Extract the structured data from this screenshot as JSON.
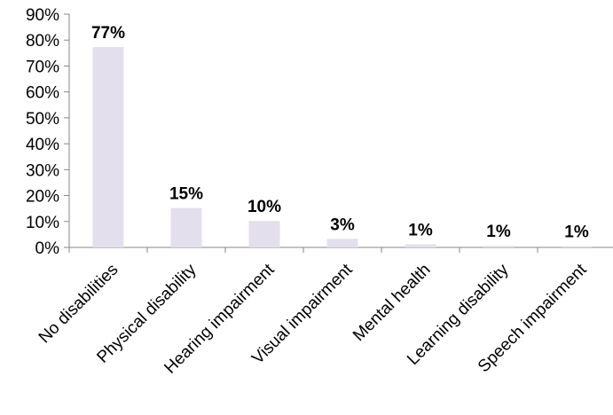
{
  "chart_data": {
    "type": "bar",
    "title": "",
    "xlabel": "",
    "ylabel": "",
    "categories": [
      "No disabilities",
      "Physical disability",
      "Hearing impairment",
      "Visual impairment",
      "Mental health",
      "Learning disability",
      "Speech impairment"
    ],
    "values": [
      77.3,
      15.2,
      10.2,
      3.3,
      1.2,
      0.6,
      0.5
    ],
    "data_labels": [
      "77%",
      "15%",
      "10%",
      "3%",
      "1%",
      "1%",
      "1%"
    ],
    "ylim": [
      0,
      90
    ],
    "yticks": [
      0,
      10,
      20,
      30,
      40,
      50,
      60,
      70,
      80,
      90
    ],
    "ytick_labels": [
      "0%",
      "10%",
      "20%",
      "30%",
      "40%",
      "50%",
      "60%",
      "70%",
      "80%",
      "90%"
    ],
    "grid": false,
    "legend": "none",
    "bar_color": "#e4dfec",
    "axis_color": "#868686"
  }
}
